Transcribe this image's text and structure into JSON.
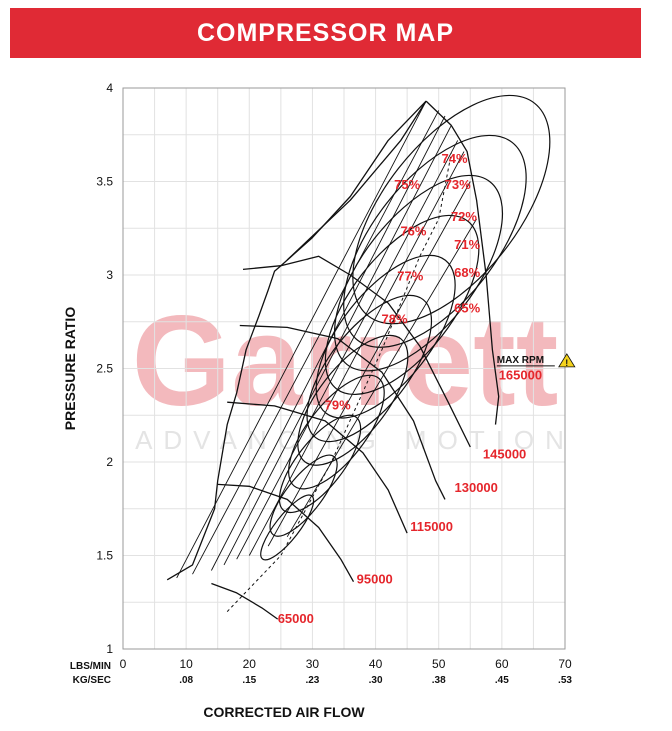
{
  "header": {
    "title": "COMPRESSOR MAP"
  },
  "watermark": {
    "brand": "Garrett",
    "tagline": "ADVANCING MOTION",
    "color": "#f3b9bd"
  },
  "chart_data": {
    "type": "line",
    "title": "COMPRESSOR MAP",
    "xlabel": "CORRECTED AIR FLOW",
    "ylabel": "PRESSURE RATIO",
    "xlim": [
      0,
      70
    ],
    "ylim": [
      1,
      4
    ],
    "x_unit_labels": [
      "LBS/MIN",
      "KG/SEC"
    ],
    "x_ticks": [
      0,
      10,
      20,
      30,
      40,
      50,
      60,
      70
    ],
    "x_ticks_secondary": [
      "",
      ".08",
      ".15",
      ".23",
      ".30",
      ".38",
      ".45",
      ".53"
    ],
    "y_ticks": [
      1,
      1.5,
      2,
      2.5,
      3,
      3.5,
      4
    ],
    "y_tick_labels": [
      "1",
      "1.5",
      "2",
      "2.5",
      "3",
      "3.5",
      "4"
    ],
    "grid": true,
    "surge_line": [
      [
        7,
        1.37
      ],
      [
        11,
        1.45
      ],
      [
        14.5,
        1.75
      ],
      [
        15,
        1.9
      ],
      [
        16.5,
        2.2
      ],
      [
        18,
        2.37
      ],
      [
        19.5,
        2.6
      ],
      [
        21.5,
        2.78
      ],
      [
        23,
        2.92
      ],
      [
        24,
        3.02
      ],
      [
        25,
        3.05
      ],
      [
        30,
        3.2
      ],
      [
        36,
        3.42
      ],
      [
        42,
        3.72
      ],
      [
        48,
        3.93
      ]
    ],
    "choke_line": [
      [
        48,
        3.93
      ],
      [
        52,
        3.8
      ],
      [
        54.5,
        3.66
      ],
      [
        56,
        3.4
      ],
      [
        57.5,
        3.0
      ],
      [
        58.5,
        2.6
      ],
      [
        59.5,
        2.35
      ],
      [
        59,
        2.2
      ]
    ],
    "speed_lines": [
      {
        "label": "65000",
        "rpm": 65000,
        "points": [
          [
            14,
            1.35
          ],
          [
            18,
            1.3
          ],
          [
            22,
            1.22
          ],
          [
            24.5,
            1.16
          ]
        ]
      },
      {
        "label": "95000",
        "rpm": 95000,
        "points": [
          [
            15,
            1.88
          ],
          [
            20,
            1.87
          ],
          [
            26,
            1.8
          ],
          [
            31,
            1.65
          ],
          [
            34.5,
            1.48
          ],
          [
            36.5,
            1.36
          ]
        ]
      },
      {
        "label": "115000",
        "rpm": 115000,
        "points": [
          [
            16.5,
            2.32
          ],
          [
            24,
            2.3
          ],
          [
            32,
            2.22
          ],
          [
            38,
            2.05
          ],
          [
            42,
            1.85
          ],
          [
            45,
            1.62
          ]
        ]
      },
      {
        "label": "130000",
        "rpm": 130000,
        "points": [
          [
            18.5,
            2.73
          ],
          [
            26,
            2.72
          ],
          [
            34,
            2.66
          ],
          [
            41,
            2.48
          ],
          [
            46,
            2.22
          ],
          [
            49.5,
            1.9
          ],
          [
            51,
            1.8
          ]
        ]
      },
      {
        "label": "145000",
        "rpm": 145000,
        "points": [
          [
            19,
            3.03
          ],
          [
            25,
            3.05
          ],
          [
            31,
            3.1
          ],
          [
            36,
            3.0
          ],
          [
            42,
            2.85
          ],
          [
            47,
            2.62
          ],
          [
            51.5,
            2.32
          ],
          [
            55,
            2.08
          ]
        ]
      },
      {
        "label": "165000",
        "rpm": 165000,
        "points": [
          [
            26,
            3.08
          ],
          [
            36,
            3.4
          ],
          [
            44,
            3.72
          ],
          [
            48,
            3.93
          ]
        ]
      }
    ],
    "max_rpm_label": "MAX RPM",
    "max_rpm_value": "165000",
    "efficiency_islands": [
      {
        "label": "79%",
        "efficiency": 79
      },
      {
        "label": "78%",
        "efficiency": 78
      },
      {
        "label": "77%",
        "efficiency": 77
      },
      {
        "label": "76%",
        "efficiency": 76
      },
      {
        "label": "75%",
        "efficiency": 75
      },
      {
        "label": "74%",
        "efficiency": 74
      },
      {
        "label": "73%",
        "efficiency": 73
      },
      {
        "label": "72%",
        "efficiency": 72
      },
      {
        "label": "71%",
        "efficiency": 71
      },
      {
        "label": "68%",
        "efficiency": 68
      },
      {
        "label": "65%",
        "efficiency": 65
      }
    ],
    "peak_efficiency_line": [
      [
        16.5,
        1.2
      ],
      [
        25,
        1.5
      ],
      [
        33,
        2.0
      ],
      [
        41,
        2.6
      ],
      [
        47,
        3.1
      ],
      [
        50,
        3.3
      ],
      [
        52,
        3.65
      ]
    ]
  }
}
